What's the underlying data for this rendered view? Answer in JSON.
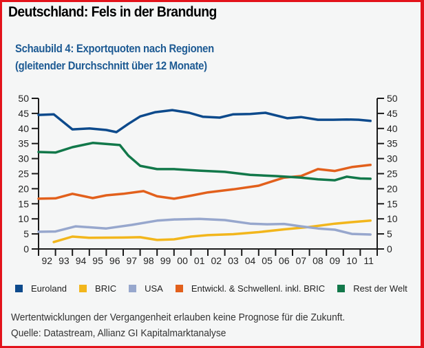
{
  "header": {
    "title": "Deutschland: Fels in der Brandung"
  },
  "chart_data": {
    "type": "line",
    "title": "Schaubild 4: Exportquoten nach Regionen",
    "subtitle": "(gleitender Durchschnitt über 12 Monate)",
    "xlabel": "",
    "ylabel": "",
    "ylim": [
      0,
      50
    ],
    "xlim": [
      1992,
      2012
    ],
    "yticks": [
      0,
      5,
      10,
      15,
      20,
      25,
      30,
      35,
      40,
      45,
      50
    ],
    "xtick_labels": [
      "92",
      "93",
      "94",
      "95",
      "96",
      "97",
      "98",
      "99",
      "00",
      "01",
      "02",
      "03",
      "04",
      "05",
      "06",
      "07",
      "08",
      "09",
      "10",
      "11"
    ],
    "grid": false,
    "legend_position": "bottom",
    "series": [
      {
        "name": "Euroland",
        "color": "#0d4a8c",
        "x": [
          1992.0,
          1992.9,
          1994.0,
          1995.0,
          1996.0,
          1996.6,
          1997.3,
          1998.0,
          1998.9,
          1999.9,
          2000.9,
          2001.7,
          2002.7,
          2003.5,
          2004.5,
          2005.4,
          2006.7,
          2007.5,
          2008.5,
          2009.4,
          2010.2,
          2010.9,
          2011.6
        ],
        "y": [
          44.5,
          44.7,
          39.7,
          40.0,
          39.5,
          38.8,
          41.5,
          44.0,
          45.4,
          46.1,
          45.2,
          43.9,
          43.6,
          44.7,
          44.8,
          45.2,
          43.4,
          43.8,
          42.9,
          42.9,
          43.0,
          42.9,
          42.5
        ]
      },
      {
        "name": "BRIC",
        "color": "#f2b61c",
        "x": [
          1992.9,
          1994.0,
          1995.0,
          1997.0,
          1998.0,
          1999.0,
          2000.0,
          2001.0,
          2002.0,
          2003.5,
          2005.0,
          2006.5,
          2008.0,
          2009.5,
          2010.5,
          2011.6
        ],
        "y": [
          2.3,
          4.1,
          3.7,
          3.8,
          3.9,
          3.0,
          3.2,
          4.1,
          4.6,
          4.9,
          5.6,
          6.5,
          7.3,
          8.4,
          8.9,
          9.4
        ]
      },
      {
        "name": "USA",
        "color": "#97a7cd",
        "x": [
          1992.0,
          1993.0,
          1994.2,
          1996.0,
          1997.5,
          1999.0,
          2000.0,
          2001.5,
          2003.0,
          2004.5,
          2005.5,
          2006.5,
          2007.5,
          2008.5,
          2009.5,
          2010.5,
          2011.6
        ],
        "y": [
          5.7,
          5.8,
          7.5,
          6.8,
          8.0,
          9.4,
          9.8,
          10.0,
          9.6,
          8.4,
          8.2,
          8.3,
          7.5,
          6.8,
          6.4,
          5.0,
          4.8
        ]
      },
      {
        "name": "Entwickl. & Schwellenl. inkl. BRIC",
        "color": "#e2601c",
        "x": [
          1992.0,
          1993.0,
          1994.0,
          1995.2,
          1996.0,
          1997.0,
          1998.2,
          1999.0,
          2000.0,
          2001.0,
          2002.0,
          2003.5,
          2005.0,
          2006.5,
          2007.5,
          2008.5,
          2009.5,
          2010.5,
          2011.6
        ],
        "y": [
          16.7,
          16.8,
          18.3,
          16.9,
          17.8,
          18.3,
          19.2,
          17.5,
          16.7,
          17.7,
          18.8,
          19.8,
          21.0,
          23.7,
          24.2,
          26.5,
          25.9,
          27.2,
          27.9
        ]
      },
      {
        "name": "Rest der Welt",
        "color": "#12784a",
        "x": [
          1992.0,
          1993.0,
          1994.0,
          1995.2,
          1996.8,
          1997.3,
          1998.0,
          1999.0,
          2000.0,
          2001.5,
          2003.0,
          2004.5,
          2006.0,
          2007.5,
          2008.5,
          2009.5,
          2010.2,
          2011.0,
          2011.6
        ],
        "y": [
          32.2,
          32.0,
          33.8,
          35.2,
          34.5,
          31.0,
          27.6,
          26.5,
          26.5,
          26.0,
          25.6,
          24.6,
          24.2,
          23.7,
          23.1,
          22.8,
          24.0,
          23.4,
          23.3
        ]
      }
    ]
  },
  "legend": [
    {
      "label": "Euroland",
      "color": "#0d4a8c"
    },
    {
      "label": "BRIC",
      "color": "#f2b61c"
    },
    {
      "label": "USA",
      "color": "#97a7cd"
    },
    {
      "label": "Entwickl. & Schwellenl. inkl. BRIC",
      "color": "#e2601c"
    },
    {
      "label": "Rest der Welt",
      "color": "#12784a"
    }
  ],
  "footer": {
    "disclaimer": "Wertentwicklungen der Vergangenheit erlauben keine Prognose für die Zukunft.",
    "source": "Quelle: Datastream, Allianz GI Kapitalmarktanalyse"
  }
}
